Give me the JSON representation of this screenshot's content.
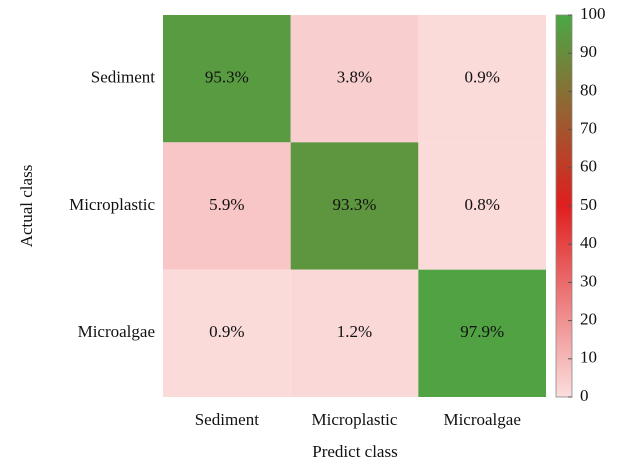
{
  "chart_data": {
    "type": "heatmap",
    "x_label": "Predict class",
    "y_label": "Actual class",
    "x_categories": [
      "Sediment",
      "Microplastic",
      "Microalgae"
    ],
    "y_categories": [
      "Sediment",
      "Microplastic",
      "Microalgae"
    ],
    "values": [
      [
        95.3,
        3.8,
        0.9
      ],
      [
        5.9,
        93.3,
        0.8
      ],
      [
        0.9,
        1.2,
        97.9
      ]
    ],
    "value_labels": [
      [
        "95.3%",
        "3.8%",
        "0.9%"
      ],
      [
        "5.9%",
        "93.3%",
        "0.8%"
      ],
      [
        "0.9%",
        "1.2%",
        "97.9%"
      ]
    ],
    "zlim": [
      0,
      100
    ],
    "zticks": [
      0,
      10,
      20,
      30,
      40,
      50,
      60,
      70,
      80,
      90,
      100
    ],
    "colors": [
      "#fbdddd",
      "#e01e1e",
      "#4aa844"
    ]
  }
}
